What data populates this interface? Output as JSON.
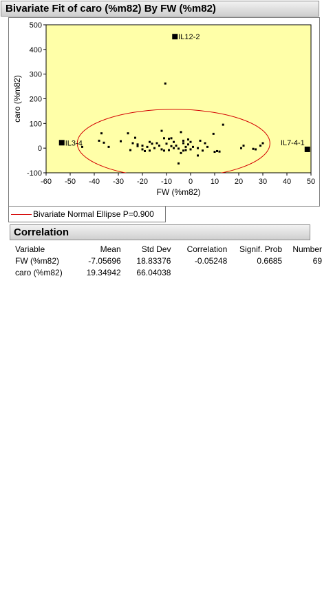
{
  "header": {
    "title": "Bivariate Fit of caro (%m82) By FW (%m82)"
  },
  "chart_data": {
    "type": "scatter",
    "title": "",
    "xlabel": "FW (%m82)",
    "ylabel": "caro (%m82)",
    "xlim": [
      -60,
      50
    ],
    "ylim": [
      -100,
      500
    ],
    "x_ticks": [
      -60,
      -50,
      -40,
      -30,
      -20,
      -10,
      0,
      10,
      20,
      30,
      40,
      50
    ],
    "y_ticks": [
      -100,
      0,
      100,
      200,
      300,
      400,
      500
    ],
    "grid": false,
    "background": "#ffffa8",
    "ellipse": {
      "center_x": -7.05696,
      "center_y": 19.34942,
      "color": "#d40000"
    },
    "labeled_points": [
      {
        "label": "IL12-2",
        "x": -6.5,
        "y": 452
      },
      {
        "label": "IL3-4",
        "x": -53.5,
        "y": 22
      },
      {
        "label": "IL7-4-1",
        "x": 48.5,
        "y": -5
      }
    ],
    "points": [
      [
        -10.5,
        262
      ],
      [
        13.5,
        95
      ],
      [
        -37,
        60
      ],
      [
        -26,
        60
      ],
      [
        -12,
        70
      ],
      [
        9.5,
        58
      ],
      [
        -8,
        40
      ],
      [
        -9,
        38
      ],
      [
        -23,
        42
      ],
      [
        -38,
        30
      ],
      [
        -36,
        22
      ],
      [
        -29,
        28
      ],
      [
        -34,
        5
      ],
      [
        -45,
        5
      ],
      [
        -22,
        15
      ],
      [
        -24,
        20
      ],
      [
        -20,
        10
      ],
      [
        -17,
        25
      ],
      [
        -16,
        18
      ],
      [
        -15,
        0
      ],
      [
        -17,
        -10
      ],
      [
        -18,
        5
      ],
      [
        -19,
        -12
      ],
      [
        -13,
        10
      ],
      [
        -12,
        -5
      ],
      [
        -11,
        40
      ],
      [
        -10,
        18
      ],
      [
        -9,
        -8
      ],
      [
        -11,
        -10
      ],
      [
        -7,
        25
      ],
      [
        -6,
        10
      ],
      [
        -5,
        -2
      ],
      [
        -4,
        65
      ],
      [
        -3,
        30
      ],
      [
        -4,
        -20
      ],
      [
        -5,
        -62
      ],
      [
        -3,
        -10
      ],
      [
        -2,
        5
      ],
      [
        -1,
        35
      ],
      [
        -1,
        15
      ],
      [
        0,
        25
      ],
      [
        1,
        5
      ],
      [
        0,
        -5
      ],
      [
        -2,
        -8
      ],
      [
        3,
        0
      ],
      [
        4,
        30
      ],
      [
        5,
        -10
      ],
      [
        6,
        20
      ],
      [
        7,
        5
      ],
      [
        3,
        -30
      ],
      [
        10,
        -15
      ],
      [
        11,
        -12
      ],
      [
        12,
        -14
      ],
      [
        -25,
        -8
      ],
      [
        -22,
        8
      ],
      [
        -14,
        20
      ],
      [
        -20,
        -5
      ],
      [
        -3,
        20
      ],
      [
        -7,
        0
      ],
      [
        -8,
        8
      ],
      [
        21,
        0
      ],
      [
        22,
        10
      ],
      [
        26,
        -3
      ],
      [
        27,
        -5
      ],
      [
        29,
        10
      ],
      [
        30,
        20
      ]
    ]
  },
  "legend": {
    "label": "Bivariate Normal Ellipse P=0.900",
    "color": "#d40000"
  },
  "correlation": {
    "title": "Correlation",
    "columns": [
      "Variable",
      "Mean",
      "Std Dev",
      "Correlation",
      "Signif. Prob",
      "Number"
    ],
    "rows": [
      [
        "FW (%m82)",
        "-7.05696",
        "18.83376",
        "-0.05248",
        "0.6685",
        "69"
      ],
      [
        "caro (%m82)",
        "19.34942",
        "66.04038",
        "",
        "",
        ""
      ]
    ]
  }
}
